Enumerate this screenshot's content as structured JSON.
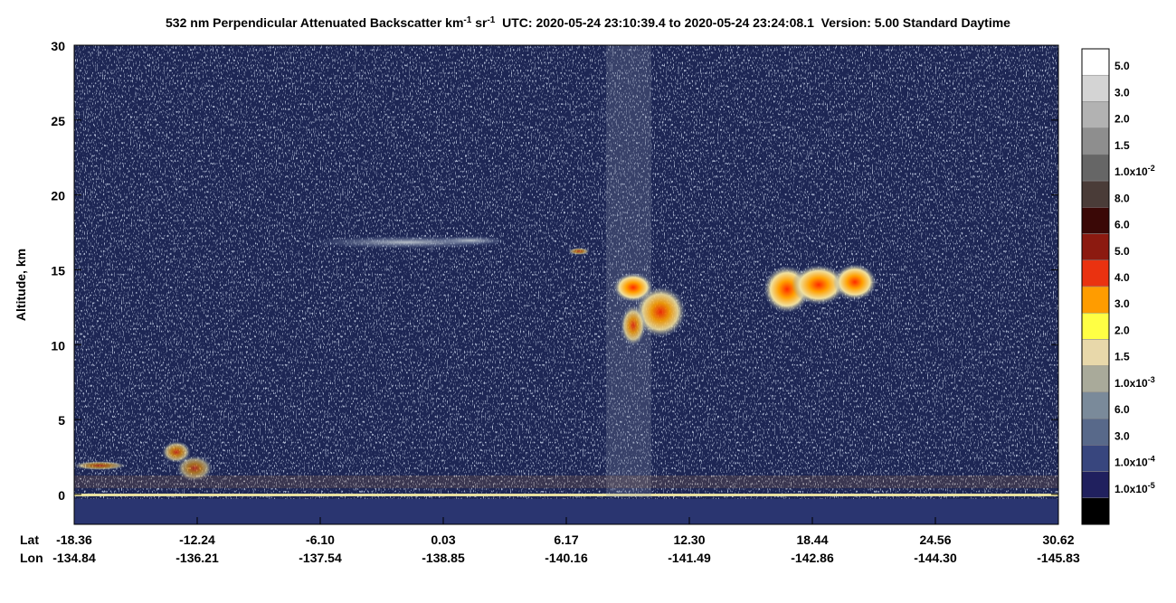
{
  "chart_data": {
    "type": "heatmap",
    "title_parts": [
      "532 nm Perpendicular Attenuated Backscatter km",
      "-1",
      " sr",
      "-1",
      "  UTC: 2020-05-24 23:10:39.4 to 2020-05-24 23:24:08.1  Version: 5.00 Standard Daytime"
    ],
    "y_label": "Altitude, km",
    "ylim": [
      -2,
      30
    ],
    "yticks": [
      0,
      5,
      10,
      15,
      20,
      25,
      30
    ],
    "x_label_names": [
      "Lat",
      "Lon"
    ],
    "x_labels": [
      {
        "lat": "-18.36",
        "lon": "-134.84"
      },
      {
        "lat": "-12.24",
        "lon": "-136.21"
      },
      {
        "lat": "-6.10",
        "lon": "-137.54"
      },
      {
        "lat": "0.03",
        "lon": "-138.85"
      },
      {
        "lat": "6.17",
        "lon": "-140.16"
      },
      {
        "lat": "12.30",
        "lon": "-141.49"
      },
      {
        "lat": "18.44",
        "lon": "-142.86"
      },
      {
        "lat": "24.56",
        "lon": "-144.30"
      },
      {
        "lat": "30.62",
        "lon": "-145.83"
      }
    ],
    "colorbar": [
      {
        "color": "#ffffff",
        "label": "5.0"
      },
      {
        "color": "#d4d4d4",
        "label": "3.0"
      },
      {
        "color": "#b2b2b2",
        "label": "2.0"
      },
      {
        "color": "#8e8e8e",
        "label": "1.5"
      },
      {
        "color": "#666666",
        "label": "1.0x10",
        "exponent": "-2"
      },
      {
        "color": "#4a3c38",
        "label": "8.0"
      },
      {
        "color": "#3a0806",
        "label": "6.0"
      },
      {
        "color": "#8c1a10",
        "label": "5.0"
      },
      {
        "color": "#ea3210",
        "label": "4.0"
      },
      {
        "color": "#ff9c00",
        "label": "3.0"
      },
      {
        "color": "#ffff44",
        "label": "2.0"
      },
      {
        "color": "#e8d8aa",
        "label": "1.5"
      },
      {
        "color": "#a9aa9a",
        "label": "1.0x10",
        "exponent": "-3"
      },
      {
        "color": "#7a8a9a",
        "label": "6.0"
      },
      {
        "color": "#58698a",
        "label": "3.0"
      },
      {
        "color": "#38467e",
        "label": "1.0x10",
        "exponent": "-4"
      },
      {
        "color": "#20205e",
        "label": "1.0x10",
        "exponent": "-5"
      },
      {
        "color": "#000000"
      }
    ]
  }
}
